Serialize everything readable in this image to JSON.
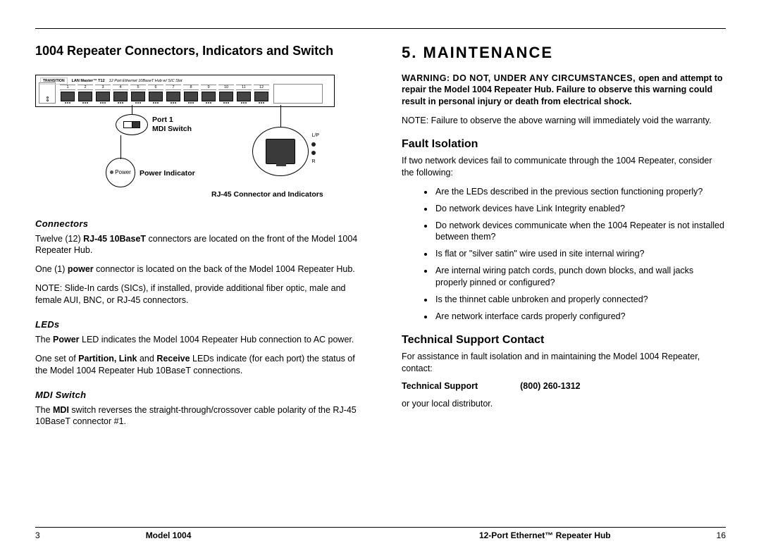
{
  "left": {
    "title": "1004 Repeater Connectors, Indicators and Switch",
    "diagram": {
      "brand": "TRANSITION",
      "model": "LAN Master™ T12",
      "desc": "12 Port Ethernet 10BaseT Hub w/ SIC Slot",
      "ports": [
        "1",
        "2",
        "3",
        "4",
        "5",
        "6",
        "7",
        "8",
        "9",
        "10",
        "11",
        "12"
      ],
      "mdi_callout": "Port 1 MDI Switch",
      "power_text": "Power",
      "power_callout": "Power Indicator",
      "rj_callout": "RJ-45 Connector and Indicators",
      "rj_leds": {
        "lp": "L/P",
        "r": "R"
      }
    },
    "connectors_h": "Connectors",
    "connectors_p1a": "Twelve (12) ",
    "connectors_p1b": "RJ-45 10BaseT",
    "connectors_p1c": " connectors are located on the front of the Model 1004 Repeater Hub.",
    "connectors_p2a": "One (1) ",
    "connectors_p2b": "power",
    "connectors_p2c": " connector is located on the back of the Model 1004 Repeater Hub.",
    "connectors_p3": "NOTE: Slide-In cards (SICs), if installed, provide additional fiber optic, male and female AUI, BNC, or RJ-45 connectors.",
    "leds_h": "LEDs",
    "leds_p1a": "The ",
    "leds_p1b": "Power",
    "leds_p1c": " LED indicates the Model 1004 Repeater Hub connection to AC power.",
    "leds_p2a": "One set of ",
    "leds_p2b": "Partition, Link",
    "leds_p2c": " and ",
    "leds_p2d": "Receive",
    "leds_p2e": " LEDs indicate (for each port) the status of the Model 1004 Repeater Hub 10BaseT connections.",
    "mdi_h": "MDI Switch",
    "mdi_pa": "The ",
    "mdi_pb": "MDI",
    "mdi_pc": " switch reverses the straight-through/crossover cable polarity of the RJ-45 10BaseT connector #1."
  },
  "right": {
    "title": "5. MAINTENANCE",
    "warn1": "WARNING: DO NOT, UNDER ANY CIRCUMSTANCES, ",
    "warn2": "open and attempt to repair the Model 1004 Repeater Hub. Failure to observe this warning could result in personal injury or death from electrical shock.",
    "note": "NOTE: Failure to observe the above warning will immediately void the warranty.",
    "fault_h": "Fault Isolation",
    "fault_p": "If two network devices fail to communicate through the 1004 Repeater, consider the following:",
    "bullets": [
      "Are the LEDs described in the previous section functioning properly?",
      "Do network devices have Link Integrity enabled?",
      "Do network devices communicate when the 1004 Repeater is not installed between them?",
      "Is flat or \"silver satin\" wire used in site internal wiring?",
      "Are internal wiring patch cords, punch down blocks, and wall jacks properly pinned or configured?",
      "Is the thinnet cable unbroken and properly connected?",
      "Are network interface cards properly configured?"
    ],
    "tech_h": "Technical Support Contact",
    "tech_p": "For assistance in fault isolation and in maintaining the Model 1004 Repeater, contact:",
    "tech_label": "Technical Support",
    "tech_phone": "(800) 260-1312",
    "tech_or": "or your local distributor."
  },
  "footer": {
    "pg_left": "3",
    "mid_left": "Model 1004",
    "mid_right": "12-Port Ethernet™ Repeater Hub",
    "pg_right": "16"
  }
}
